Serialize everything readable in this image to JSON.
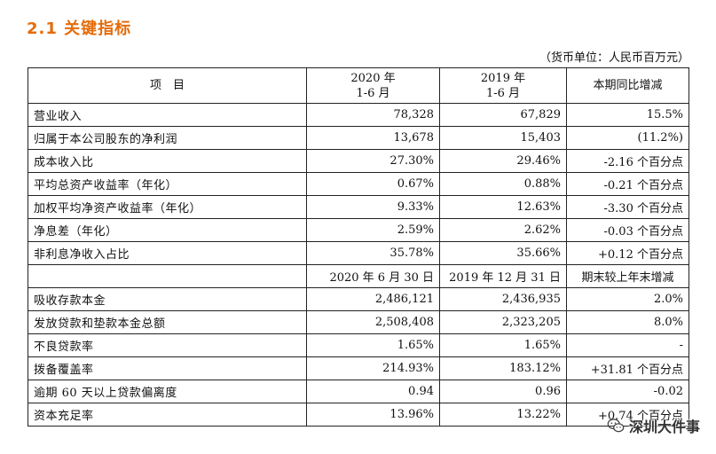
{
  "heading": "2.1  关键指标",
  "unit_note": "（货币单位：人民币百万元）",
  "header": {
    "item": "项　目",
    "col1_line1": "2020 年",
    "col1_line2": "1-6 月",
    "col2_line1": "2019 年",
    "col2_line2": "1-6 月",
    "col3": "本期同比增减"
  },
  "rows_a": [
    {
      "label": "营业收入",
      "v1": "78,328",
      "v2": "67,829",
      "v3": "15.5%"
    },
    {
      "label": "归属于本公司股东的净利润",
      "v1": "13,678",
      "v2": "15,403",
      "v3": "(11.2%)"
    },
    {
      "label": "成本收入比",
      "v1": "27.30%",
      "v2": "29.46%",
      "v3": "-2.16 个百分点"
    },
    {
      "label": "平均总资产收益率（年化）",
      "v1": "0.67%",
      "v2": "0.88%",
      "v3": "-0.21 个百分点"
    },
    {
      "label": "加权平均净资产收益率（年化）",
      "v1": "9.33%",
      "v2": "12.63%",
      "v3": "-3.30 个百分点"
    },
    {
      "label": "净息差（年化）",
      "v1": "2.59%",
      "v2": "2.62%",
      "v3": "-0.03 个百分点"
    },
    {
      "label": "非利息净收入占比",
      "v1": "35.78%",
      "v2": "35.66%",
      "v3": "+0.12 个百分点"
    }
  ],
  "subheader": {
    "c1": "2020 年 6 月 30 日",
    "c2": "2019 年 12 月 31 日",
    "c3": "期末较上年末增减"
  },
  "rows_b": [
    {
      "label": "吸收存款本金",
      "v1": "2,486,121",
      "v2": "2,436,935",
      "v3": "2.0%"
    },
    {
      "label": "发放贷款和垫款本金总额",
      "v1": "2,508,408",
      "v2": "2,323,205",
      "v3": "8.0%"
    },
    {
      "label": "不良贷款率",
      "v1": "1.65%",
      "v2": "1.65%",
      "v3": "-"
    },
    {
      "label": "拨备覆盖率",
      "v1": "214.93%",
      "v2": "183.12%",
      "v3": "+31.81 个百分点"
    },
    {
      "label": "逾期 60 天以上贷款偏离度",
      "v1": "0.94",
      "v2": "0.96",
      "v3": "-0.02"
    },
    {
      "label": "资本充足率",
      "v1": "13.96%",
      "v2": "13.22%",
      "v3": "+0.74 个百分点"
    }
  ],
  "watermark": "深圳大件事",
  "icons": {
    "watermark": "wechat-icon"
  }
}
